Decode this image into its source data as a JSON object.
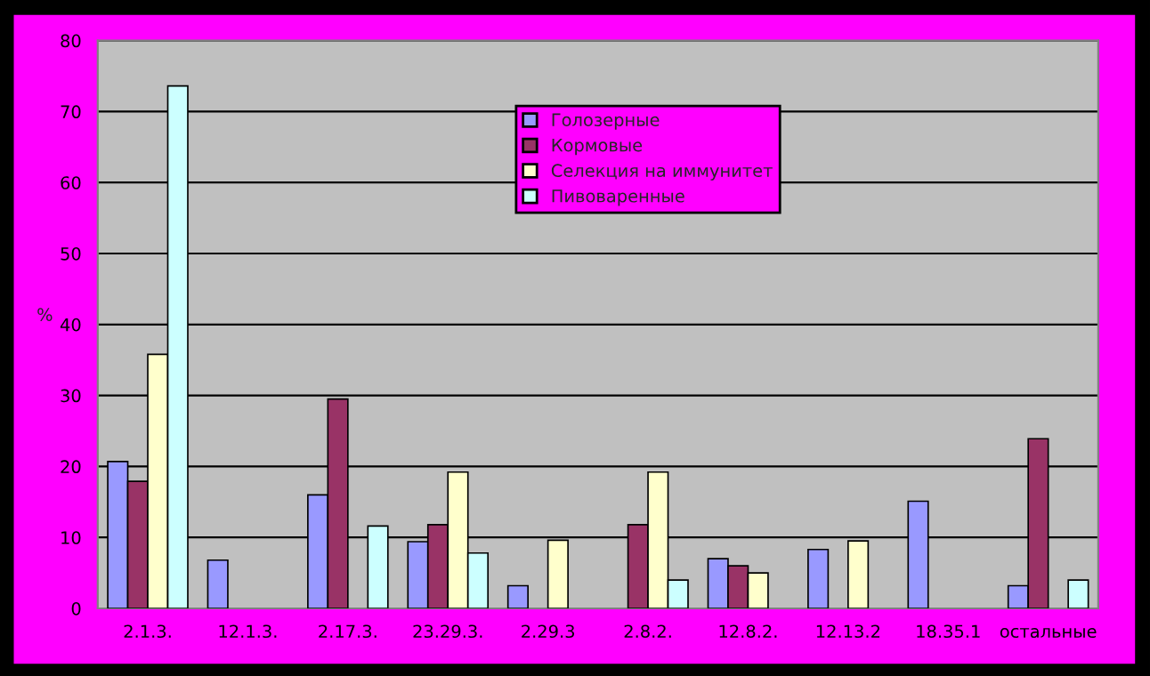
{
  "chart_data": {
    "type": "bar",
    "ylabel": "%",
    "categories": [
      "2.1.3.",
      "12.1.3.",
      "2.17.3.",
      "23.29.3.",
      "2.29.3",
      "2.8.2.",
      "12.8.2.",
      "12.13.2",
      "18.35.1",
      "остальные"
    ],
    "series": [
      {
        "name": "Голозерные",
        "color": "#9999ff",
        "values": [
          20.7,
          6.8,
          16,
          9.4,
          3.2,
          0,
          7.0,
          8.3,
          15.1,
          3.2
        ]
      },
      {
        "name": "Кормовые",
        "color": "#993366",
        "values": [
          17.9,
          0,
          29.5,
          11.8,
          0,
          11.8,
          6.0,
          0,
          0,
          23.9
        ]
      },
      {
        "name": "Селекция на иммунитет",
        "color": "#ffffcc",
        "values": [
          35.8,
          0,
          0,
          19.2,
          9.6,
          19.2,
          5.0,
          9.5,
          0,
          0
        ]
      },
      {
        "name": "Пивоваренные",
        "color": "#ccffff",
        "values": [
          73.6,
          0,
          11.6,
          7.8,
          0,
          4.0,
          0,
          0,
          0,
          4.0
        ]
      }
    ],
    "ylim": [
      0,
      80
    ],
    "yticks": [
      0,
      10,
      20,
      30,
      40,
      50,
      60,
      70,
      80
    ],
    "grid": "y",
    "legend": "top"
  }
}
